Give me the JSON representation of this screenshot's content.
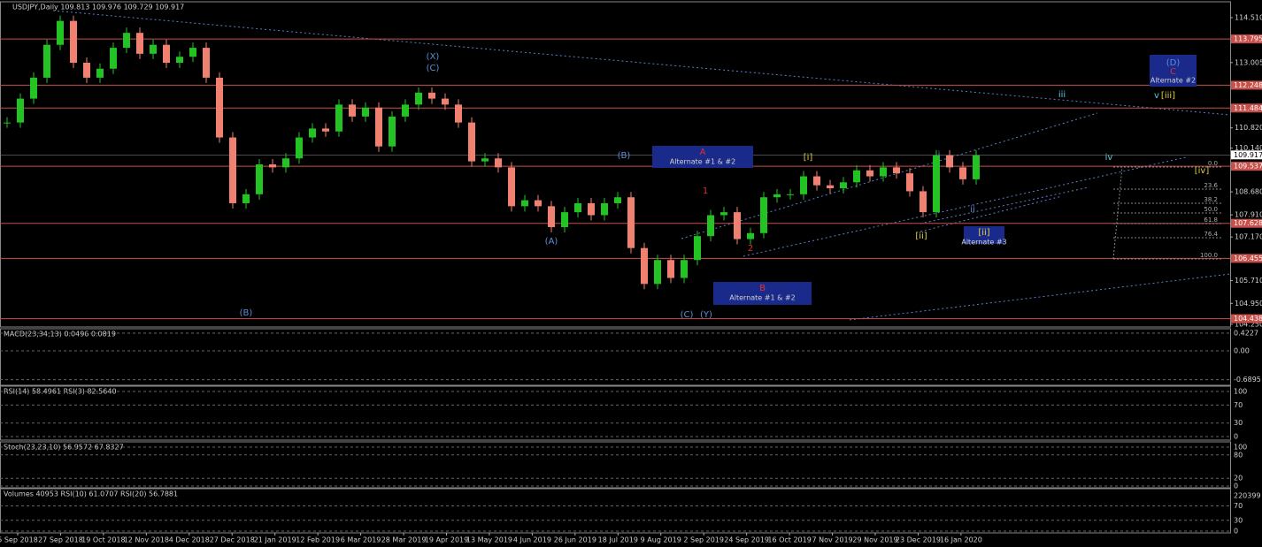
{
  "chart_data": {
    "type": "candlestick",
    "title": "USDJPY,Daily  109.813 109.976 109.729 109.917",
    "up_color": "#22c322",
    "down_color": "#f08070",
    "close": [
      111.0,
      111.8,
      112.5,
      113.6,
      114.4,
      113.0,
      112.5,
      112.8,
      113.5,
      114.0,
      113.3,
      113.6,
      113.0,
      113.2,
      113.5,
      112.5,
      110.5,
      108.3,
      108.6,
      109.6,
      109.5,
      109.8,
      110.5,
      110.8,
      110.7,
      111.6,
      111.2,
      111.5,
      110.2,
      111.2,
      111.6,
      112.0,
      111.8,
      111.6,
      111.0,
      109.7,
      109.8,
      109.5,
      108.2,
      108.4,
      108.2,
      107.5,
      108.0,
      108.3,
      107.9,
      108.3,
      108.5,
      106.8,
      105.6,
      106.4,
      105.8,
      106.4,
      107.2,
      107.9,
      108.0,
      107.1,
      107.3,
      108.5,
      108.6,
      108.6,
      109.2,
      108.9,
      108.8,
      109.0,
      109.4,
      109.2,
      109.5,
      109.3,
      108.7,
      108.0,
      109.9,
      109.5,
      109.1,
      109.9
    ],
    "xlabels": [
      "5 Sep 2018",
      "27 Sep 2018",
      "19 Oct 2018",
      "12 Nov 2018",
      "4 Dec 2018",
      "27 Dec 2018",
      "21 Jan 2019",
      "12 Feb 2019",
      "6 Mar 2019",
      "28 Mar 2019",
      "19 Apr 2019",
      "13 May 2019",
      "4 Jun 2019",
      "26 Jun 2019",
      "18 Jul 2019",
      "9 Aug 2019",
      "2 Sep 2019",
      "24 Sep 2019",
      "16 Oct 2019",
      "7 Nov 2019",
      "29 Nov 2019",
      "23 Dec 2019",
      "16 Jan 2020"
    ],
    "ylim": [
      104.16,
      115.04
    ],
    "yticks": [
      {
        "value": 114.51,
        "label": "114.510"
      },
      113.005,
      {
        "value": 110.82,
        "label": "110.820"
      },
      {
        "value": 110.14,
        "label": "110.140"
      },
      {
        "value": 108.68,
        "label": "108.680"
      },
      {
        "value": 107.91,
        "label": "107.910"
      },
      {
        "value": 107.17,
        "label": "107.170"
      },
      {
        "value": 105.71,
        "label": "105.710"
      },
      {
        "value": 104.95,
        "label": "104.950"
      },
      {
        "value": 104.25,
        "label": "104.250"
      }
    ],
    "levels": [
      {
        "value": 113.795,
        "label": "113.795"
      },
      {
        "value": 112.248,
        "label": "112.248"
      },
      {
        "value": 111.484,
        "label": "111.484"
      },
      {
        "value": 109.537,
        "label": "109.537"
      },
      {
        "value": 107.628,
        "label": "107.628"
      },
      {
        "value": 106.455,
        "label": "106.455"
      },
      {
        "value": 104.438,
        "label": "104.438"
      }
    ],
    "level_color": "#c8504a",
    "last": 109.917,
    "annotations": [
      "(X)",
      "(C)",
      "(B)",
      "(A)",
      "(B)",
      "(C)",
      "(Y)",
      "1",
      "2",
      "[i]",
      "[ii]",
      "i",
      "ii",
      "iii",
      "iv",
      "v",
      "[iii]",
      "[iv]"
    ],
    "boxes": [
      {
        "head": "A",
        "text": "Alternate #1 & #2"
      },
      {
        "head": "B",
        "text": "Alternate #1 & #2"
      },
      {
        "head": "[ii]",
        "text": "Alternate #3"
      },
      {
        "head": "(D)",
        "mid": "C",
        "text": "Alternate #2"
      }
    ],
    "fib": [
      "0.0",
      "23.6",
      "38.2",
      "50.0",
      "61.8",
      "76.4",
      "100.0"
    ],
    "indicators": [
      {
        "title": "MACD(23,34,13) 0.0496 0.0819",
        "ylim": [
          -0.824,
          0.528
        ],
        "yticks": [
          0.4227,
          {
            "value": 0,
            "label": "0.00"
          },
          -0.6895
        ]
      },
      {
        "title": "RSI(14) 58.4961  RSI(3) 82.5640",
        "ylim": [
          -7.8,
          111.8
        ],
        "yticks": [
          100,
          70,
          30,
          0
        ]
      },
      {
        "title": "Stoch(23,23,10) 56.9572 67.8327",
        "ylim": [
          -4.5,
          113.6
        ],
        "yticks": [
          100,
          80,
          20,
          0
        ]
      },
      {
        "title": "Volumes 40953  RSI(10) 61.0707  RSI(20) 56.7881",
        "top_label": "220399",
        "ylim": [
          -5,
          118
        ],
        "yticks": [
          70,
          30,
          0
        ]
      }
    ]
  }
}
